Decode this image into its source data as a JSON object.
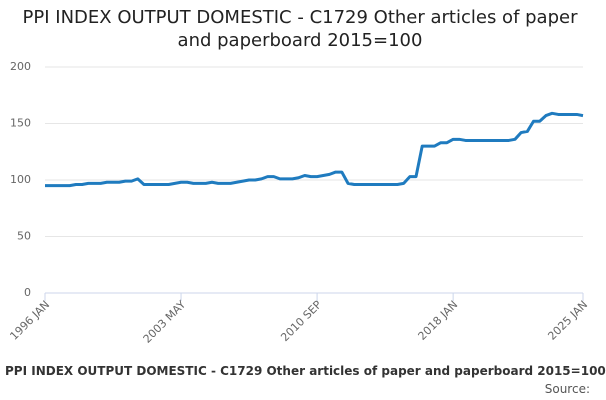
{
  "chart_data": {
    "type": "line",
    "title": "PPI INDEX OUTPUT DOMESTIC - C1729 Other articles of paper and paperboard 2015=100",
    "footer_title": "PPI INDEX OUTPUT DOMESTIC - C1729 Other articles of paper and paperboard 2015=100",
    "source": "Source:",
    "categories": [
      "1996 JAN",
      null,
      null,
      null,
      null,
      null,
      null,
      null,
      null,
      null,
      null,
      null,
      null,
      null,
      null,
      null,
      null,
      null,
      null,
      null,
      null,
      null,
      "2003 MAY",
      null,
      null,
      null,
      null,
      null,
      null,
      null,
      null,
      null,
      null,
      null,
      null,
      null,
      null,
      null,
      null,
      null,
      null,
      null,
      null,
      null,
      "2010 SEP",
      null,
      null,
      null,
      null,
      null,
      null,
      null,
      null,
      null,
      null,
      null,
      null,
      null,
      null,
      null,
      null,
      null,
      null,
      null,
      null,
      null,
      "2018 JAN",
      null,
      null,
      null,
      null,
      null,
      null,
      null,
      null,
      null,
      null,
      null,
      null,
      null,
      null,
      null,
      null,
      null,
      null,
      null,
      null,
      "2025 JAN"
    ],
    "series": [
      {
        "name": "PPI INDEX OUTPUT DOMESTIC - C1729 Other articles of paper and paperboard 2015=100",
        "color": "#1f7bbf",
        "values": [
          95,
          95,
          95,
          95,
          95,
          96,
          96,
          97,
          97,
          97,
          98,
          98,
          98,
          99,
          99,
          101,
          96,
          96,
          96,
          96,
          96,
          97,
          98,
          98,
          97,
          97,
          97,
          98,
          97,
          97,
          97,
          98,
          99,
          100,
          100,
          101,
          103,
          103,
          101,
          101,
          101,
          102,
          104,
          103,
          103,
          104,
          105,
          107,
          107,
          97,
          96,
          96,
          96,
          96,
          96,
          96,
          96,
          96,
          97,
          103,
          103,
          130,
          130,
          130,
          133,
          133,
          136,
          136,
          135,
          135,
          135,
          135,
          135,
          135,
          135,
          135,
          136,
          142,
          143,
          152,
          152,
          157,
          159,
          158,
          158,
          158,
          158,
          157
        ]
      }
    ],
    "ylim": [
      0,
      200
    ],
    "yticks": [
      0,
      50,
      100,
      150,
      200
    ],
    "grid": true
  }
}
